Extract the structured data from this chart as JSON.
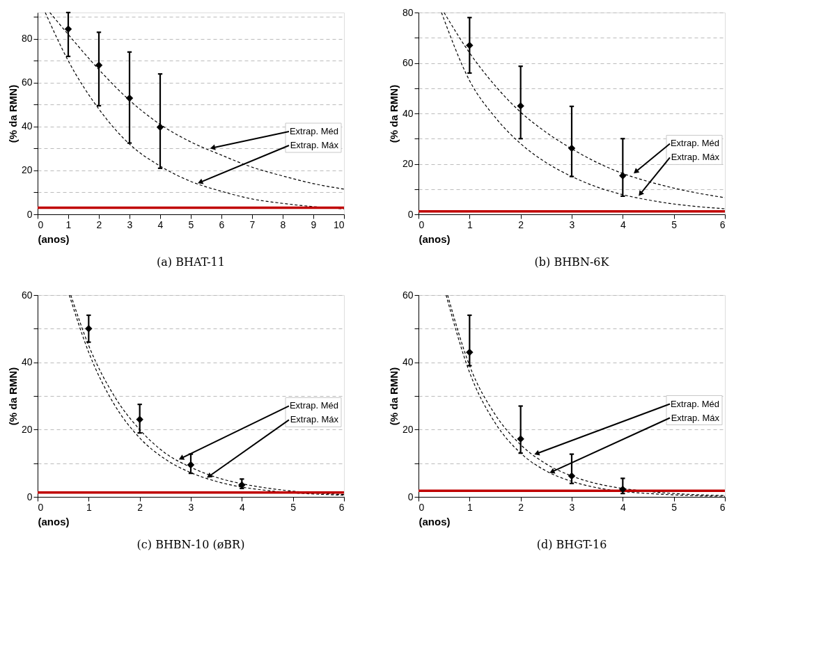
{
  "chart_data": [
    {
      "type": "scatter",
      "title": "(a) BHAT-11",
      "xlabel": "(anos)",
      "ylabel": "(% da RMN)",
      "xlim": [
        0,
        10
      ],
      "xticks": [
        0,
        1,
        2,
        3,
        4,
        5,
        6,
        7,
        8,
        9,
        10
      ],
      "ylim": [
        0,
        92
      ],
      "yticks": [
        0,
        {
          "value": 10,
          "label": null
        },
        20,
        {
          "value": 30,
          "label": null
        },
        40,
        {
          "value": 50,
          "label": null
        },
        60,
        {
          "value": 70,
          "label": null
        },
        80,
        {
          "value": 90,
          "label": null
        }
      ],
      "grid": "y",
      "series": [
        {
          "type": "line",
          "color": "#000000",
          "line_style": "dashed",
          "x": [
            0.4,
            1,
            2,
            3,
            4,
            5,
            6,
            7,
            8,
            9,
            10
          ],
          "values": [
            92,
            82,
            66,
            52,
            41,
            33,
            27,
            21.5,
            17.5,
            14,
            11.5
          ]
        },
        {
          "type": "line",
          "color": "#000000",
          "line_style": "dashed",
          "x": [
            0.25,
            1,
            2,
            3,
            4,
            5,
            6,
            7,
            8,
            9,
            10
          ],
          "values": [
            92,
            70,
            48,
            32,
            22,
            15,
            10.5,
            7,
            5,
            3.5,
            2.5
          ]
        },
        {
          "color": "#000000",
          "marker": "diamond",
          "x": [
            1,
            2,
            3,
            4
          ],
          "values": [
            84.5,
            68,
            53,
            39.7
          ],
          "errors": [
            [
              72,
              92
            ],
            [
              49.5,
              83
            ],
            [
              32.5,
              74
            ],
            [
              21,
              64
            ]
          ]
        }
      ],
      "ref_lines": [
        {
          "axis": "y",
          "value": 3,
          "color": "#c00000"
        }
      ],
      "annotations": [
        {
          "text": "Extrap. Méd",
          "x": 5.6,
          "y": 30
        },
        {
          "text": "Extrap. Máx",
          "x": 5.2,
          "y": 14
        }
      ]
    },
    {
      "type": "scatter",
      "title": "(b) BHBN-6K",
      "xlabel": "(anos)",
      "ylabel": "(% da RMN)",
      "xlim": [
        0,
        6
      ],
      "xticks": [
        0,
        1,
        2,
        3,
        4,
        5,
        6
      ],
      "ylim": [
        0,
        80
      ],
      "yticks": [
        0,
        {
          "value": 10,
          "label": null
        },
        20,
        {
          "value": 30,
          "label": null
        },
        40,
        {
          "value": 50,
          "label": null
        },
        60,
        {
          "value": 70,
          "label": null
        },
        80
      ],
      "grid": "y",
      "series": [
        {
          "type": "line",
          "color": "#000000",
          "line_style": "dashed",
          "x": [
            0.5,
            1,
            1.5,
            2,
            2.5,
            3,
            3.5,
            4,
            4.5,
            5,
            5.5,
            6
          ],
          "values": [
            80,
            64,
            51,
            40.5,
            32.5,
            26,
            20.5,
            16.2,
            13,
            10.4,
            8.3,
            6.6
          ]
        },
        {
          "type": "line",
          "color": "#000000",
          "line_style": "dashed",
          "x": [
            0.45,
            1,
            1.5,
            2,
            2.5,
            3,
            3.5,
            4,
            4.5,
            5,
            5.5,
            6
          ],
          "values": [
            80,
            53,
            38.5,
            28,
            20.5,
            15,
            10.8,
            7.8,
            5.7,
            4.1,
            3,
            2.2
          ]
        },
        {
          "color": "#000000",
          "marker": "diamond",
          "x": [
            1,
            2,
            3,
            4
          ],
          "values": [
            67,
            43,
            26.2,
            15.3
          ],
          "errors": [
            [
              56,
              78
            ],
            [
              30,
              58.7
            ],
            [
              15,
              42.8
            ],
            [
              7.2,
              30
            ]
          ]
        }
      ],
      "ref_lines": [
        {
          "axis": "y",
          "value": 1.2,
          "color": "#c00000"
        }
      ],
      "annotations": [
        {
          "text": "Extrap. Méd",
          "x": 4.2,
          "y": 16
        },
        {
          "text": "Extrap. Máx",
          "x": 4.3,
          "y": 7
        }
      ]
    },
    {
      "type": "scatter",
      "title": "(c) BHBN-10 (øBR)",
      "xlabel": "(anos)",
      "ylabel": "(% da RMN)",
      "xlim": [
        0,
        6
      ],
      "xticks": [
        0,
        1,
        2,
        3,
        4,
        5,
        6
      ],
      "ylim": [
        0,
        60
      ],
      "yticks": [
        0,
        {
          "value": 10,
          "label": null
        },
        20,
        {
          "value": 30,
          "label": null
        },
        40,
        {
          "value": 50,
          "label": null
        },
        60
      ],
      "grid": "y",
      "series": [
        {
          "type": "line",
          "color": "#000000",
          "line_style": "dashed",
          "x": [
            0.65,
            1,
            1.5,
            2,
            2.5,
            3,
            3.5,
            4,
            4.5,
            5,
            5.5,
            6
          ],
          "values": [
            60,
            45,
            30,
            20,
            13,
            8.8,
            5.8,
            3.9,
            2.6,
            1.7,
            1.1,
            0.7
          ]
        },
        {
          "type": "line",
          "color": "#000000",
          "line_style": "dashed",
          "x": [
            0.62,
            1,
            1.5,
            2,
            2.5,
            3,
            3.5,
            4,
            4.5,
            5,
            5.5,
            6
          ],
          "values": [
            60,
            43,
            27.5,
            17.5,
            11.2,
            7.2,
            4.6,
            2.9,
            1.9,
            1.2,
            0.8,
            0.5
          ]
        },
        {
          "color": "#000000",
          "marker": "diamond",
          "x": [
            1,
            2,
            3,
            4
          ],
          "values": [
            50,
            23,
            9.5,
            3.5
          ],
          "errors": [
            [
              46,
              54
            ],
            [
              19,
              27.5
            ],
            [
              7,
              12.7
            ],
            [
              2.5,
              5.3
            ]
          ]
        }
      ],
      "ref_lines": [
        {
          "axis": "y",
          "value": 1.3,
          "color": "#c00000"
        }
      ],
      "annotations": [
        {
          "text": "Extrap. Méd",
          "x": 2.75,
          "y": 11
        },
        {
          "text": "Extrap. Máx",
          "x": 3.3,
          "y": 5.5
        }
      ]
    },
    {
      "type": "scatter",
      "title": "(d) BHGT-16",
      "xlabel": "(anos)",
      "ylabel": "(% da RMN)",
      "xlim": [
        0,
        6
      ],
      "xticks": [
        0,
        1,
        2,
        3,
        4,
        5,
        6
      ],
      "ylim": [
        0,
        60
      ],
      "yticks": [
        0,
        {
          "value": 10,
          "label": null
        },
        20,
        {
          "value": 30,
          "label": null
        },
        40,
        {
          "value": 50,
          "label": null
        },
        60
      ],
      "grid": "y",
      "series": [
        {
          "type": "line",
          "color": "#000000",
          "line_style": "dashed",
          "x": [
            0.57,
            1,
            1.5,
            2,
            2.5,
            3,
            3.5,
            4,
            4.5,
            5,
            5.5,
            6
          ],
          "values": [
            60,
            39,
            24.5,
            15.5,
            9.8,
            6.2,
            3.9,
            2.5,
            1.6,
            1,
            0.6,
            0.4
          ]
        },
        {
          "type": "line",
          "color": "#000000",
          "line_style": "dashed",
          "x": [
            0.54,
            1,
            1.5,
            2,
            2.5,
            3,
            3.5,
            4,
            4.5,
            5,
            5.5,
            6
          ],
          "values": [
            60,
            37,
            22,
            13,
            7.7,
            4.6,
            2.7,
            1.6,
            1,
            0.6,
            0.3,
            0.2
          ]
        },
        {
          "color": "#000000",
          "marker": "diamond",
          "x": [
            1,
            2,
            3,
            4
          ],
          "values": [
            43,
            17.2,
            6.2,
            2.2
          ],
          "errors": [
            [
              39,
              54
            ],
            [
              13,
              27
            ],
            [
              4,
              12.7
            ],
            [
              1,
              5.5
            ]
          ]
        }
      ],
      "ref_lines": [
        {
          "axis": "y",
          "value": 1.8,
          "color": "#c00000"
        }
      ],
      "annotations": [
        {
          "text": "Extrap. Méd",
          "x": 2.25,
          "y": 12.5
        },
        {
          "text": "Extrap. Máx",
          "x": 2.55,
          "y": 7
        }
      ]
    }
  ]
}
